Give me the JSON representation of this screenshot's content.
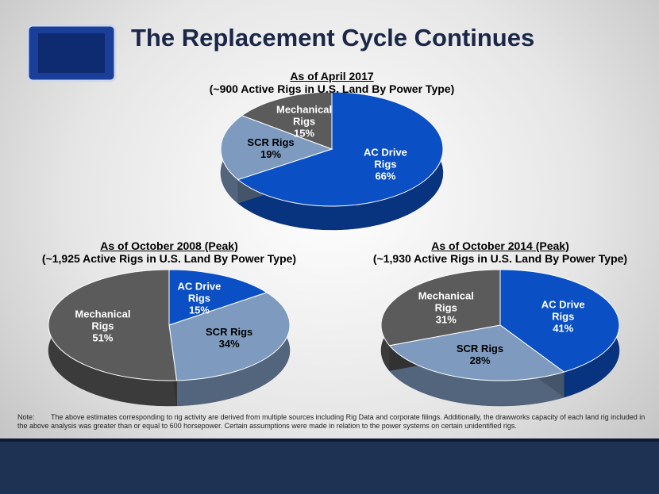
{
  "header": {
    "title": "The Replacement Cycle Continues"
  },
  "chart_data": [
    {
      "type": "pie",
      "title": "As of April 2017",
      "subtitle": "(~900 Active Rigs in U.S. Land By Power Type)",
      "categories": [
        "AC Drive Rigs",
        "SCR Rigs",
        "Mechanical Rigs"
      ],
      "values": [
        66,
        19,
        15
      ],
      "value_labels": [
        "66%",
        "19%",
        "15%"
      ],
      "colors": [
        "#0b4fc4",
        "#7e9bbf",
        "#5b5b5b"
      ]
    },
    {
      "type": "pie",
      "title": "As of October 2008 (Peak)",
      "subtitle": "(~1,925 Active Rigs in U.S. Land By Power Type)",
      "categories": [
        "AC Drive Rigs",
        "SCR Rigs",
        "Mechanical Rigs"
      ],
      "values": [
        15,
        34,
        51
      ],
      "value_labels": [
        "15%",
        "34%",
        "51%"
      ],
      "colors": [
        "#0b4fc4",
        "#7e9bbf",
        "#5b5b5b"
      ]
    },
    {
      "type": "pie",
      "title": "As of October 2014 (Peak)",
      "subtitle": "(~1,930 Active Rigs in U.S. Land By Power Type)",
      "categories": [
        "AC Drive Rigs",
        "SCR Rigs",
        "Mechanical Rigs"
      ],
      "values": [
        41,
        28,
        31
      ],
      "value_labels": [
        "41%",
        "28%",
        "31%"
      ],
      "colors": [
        "#0b4fc4",
        "#7e9bbf",
        "#5b5b5b"
      ]
    }
  ],
  "note": {
    "label": "Note:",
    "text": "The above estimates corresponding to rig activity are derived from multiple sources including Rig Data and corporate filings.  Additionally, the drawworks capacity of each land rig included in the above analysis was greater than or equal to 600 horsepower.  Certain assumptions were made in relation to the power systems on certain unidentified rigs."
  }
}
